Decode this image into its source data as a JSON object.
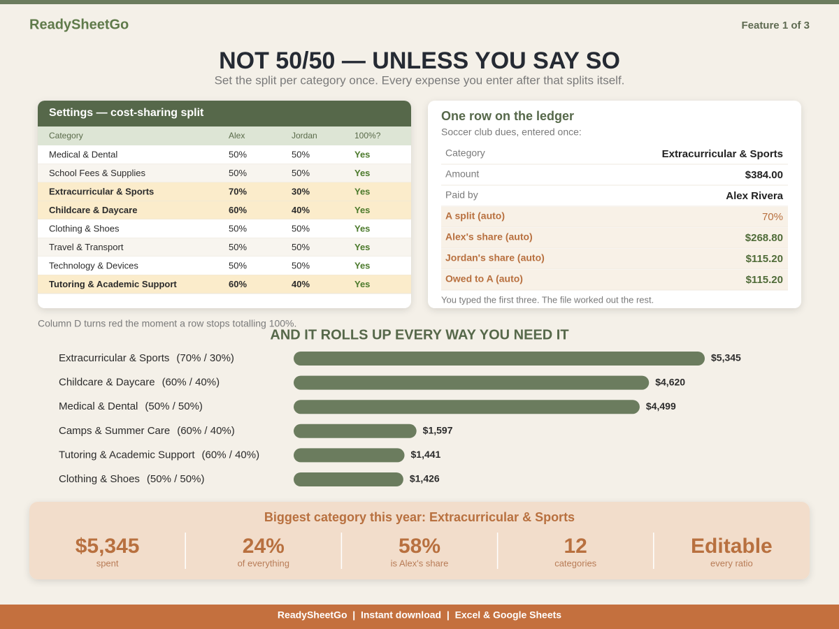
{
  "header": {
    "brand": "ReadySheetGo",
    "feature": "Feature 1 of 3",
    "title": "NOT 50/50 — UNLESS YOU SAY SO",
    "subtitle": "Set the split per category once. Every expense you enter after that splits itself."
  },
  "settings": {
    "title": "Settings — cost-sharing split",
    "columns": [
      "Category",
      "Alex",
      "Jordan",
      "100%?"
    ],
    "rows": [
      [
        "Medical & Dental",
        "50%",
        "50%",
        "Yes"
      ],
      [
        "School Fees & Supplies",
        "50%",
        "50%",
        "Yes"
      ],
      [
        "Extracurricular & Sports",
        "70%",
        "30%",
        "Yes"
      ],
      [
        "Childcare & Daycare",
        "60%",
        "40%",
        "Yes"
      ],
      [
        "Clothing & Shoes",
        "50%",
        "50%",
        "Yes"
      ],
      [
        "Travel & Transport",
        "50%",
        "50%",
        "Yes"
      ],
      [
        "Technology & Devices",
        "50%",
        "50%",
        "Yes"
      ],
      [
        "Tutoring & Academic Support",
        "60%",
        "40%",
        "Yes"
      ]
    ],
    "note": "Column D turns red the moment a row stops totalling 100%."
  },
  "ledger": {
    "title": "One row on the ledger",
    "subtitle": "Soccer club dues, entered once:",
    "rows": [
      {
        "label": "Category",
        "value": "Extracurricular & Sports"
      },
      {
        "label": "Amount",
        "value": "$384.00"
      },
      {
        "label": "Paid by",
        "value": "Alex Rivera"
      },
      {
        "label": "A split (auto)",
        "value": "70%"
      },
      {
        "label": "Alex's share (auto)",
        "value": "$268.80"
      },
      {
        "label": "Jordan's share (auto)",
        "value": "$115.20"
      },
      {
        "label": "Owed to A (auto)",
        "value": "$115.20"
      }
    ],
    "note": "You typed the first three. The file worked out the rest."
  },
  "chart_data": {
    "type": "bar",
    "orientation": "horizontal",
    "title": "AND IT ROLLS UP EVERY WAY YOU NEED IT",
    "categories": [
      "Extracurricular & Sports",
      "Childcare & Daycare",
      "Medical & Dental",
      "Camps & Summer Care",
      "Tutoring & Academic Support",
      "Clothing & Shoes"
    ],
    "splits": [
      "(70% / 30%)",
      "(60% / 40%)",
      "(50% / 50%)",
      "(60% / 40%)",
      "(60% / 40%)",
      "(50% / 50%)"
    ],
    "values": [
      5345,
      4620,
      4499,
      1597,
      1441,
      1426
    ],
    "value_labels": [
      "$5,345",
      "$4,620",
      "$4,499",
      "$1,597",
      "$1,441",
      "$1,426"
    ],
    "color": "#6b7c5e"
  },
  "stats": {
    "heading": "Biggest category this year: Extracurricular & Sports",
    "items": [
      {
        "value": "$5,345",
        "caption": "spent"
      },
      {
        "value": "24%",
        "caption": "of everything"
      },
      {
        "value": "58%",
        "caption": "is Alex's share"
      },
      {
        "value": "12",
        "caption": "categories"
      },
      {
        "value": "Editable",
        "caption": "every ratio"
      }
    ]
  },
  "footer": {
    "text": "ReadySheetGo  |  Instant download  |  Excel & Google Sheets"
  }
}
